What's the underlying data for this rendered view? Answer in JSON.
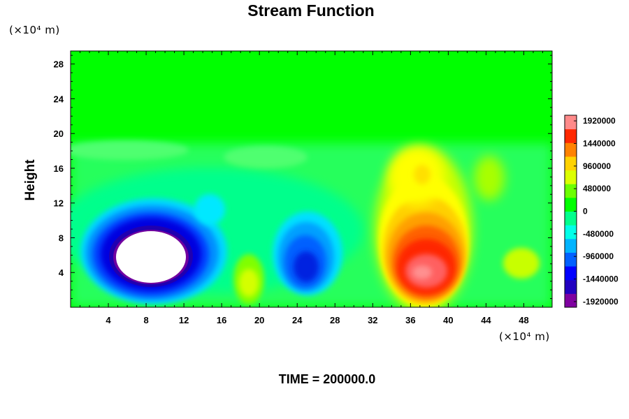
{
  "chart_data": {
    "type": "heatmap",
    "title": "Stream Function",
    "ylabel": "Height",
    "x_unit": "(×10⁴ m)",
    "y_unit": "(×10⁴ m)",
    "xlim": [
      0,
      51
    ],
    "ylim": [
      0,
      29.5
    ],
    "x_ticks": [
      4,
      8,
      12,
      16,
      20,
      24,
      28,
      32,
      36,
      40,
      44,
      48
    ],
    "y_ticks": [
      4,
      8,
      12,
      16,
      20,
      24,
      28
    ],
    "colorbar": {
      "range": [
        -2040000,
        2040000
      ],
      "tick_values": [
        1920000,
        1440000,
        960000,
        480000,
        0,
        -480000,
        -960000,
        -1440000,
        -1920000
      ],
      "tick_labels": [
        "1920000",
        "1440000",
        "960000",
        "480000",
        "0",
        "-480000",
        "-960000",
        "-1440000",
        "-1920000"
      ],
      "colors": [
        "#7f00a0",
        "#2200c0",
        "#0000ff",
        "#0060ff",
        "#00b4ff",
        "#00ffe8",
        "#00ff8c",
        "#00ff00",
        "#6cff00",
        "#dcff00",
        "#ffd200",
        "#ff8200",
        "#ff2800",
        "#ff8a8a"
      ]
    },
    "field_features": [
      {
        "name": "strong negative cell",
        "center": [
          8.8,
          6.0
        ],
        "extent": [
          5.0,
          3.3
        ],
        "peak": -2400000,
        "note": "values below colorbar minimum shown as white"
      },
      {
        "name": "negative cell",
        "center": [
          25.5,
          4.5
        ],
        "extent": [
          3.0,
          3.0
        ],
        "peak": -1500000
      },
      {
        "name": "weak positive cell",
        "center": [
          19.0,
          2.5
        ],
        "extent": [
          1.6,
          1.8
        ],
        "peak": 600000
      },
      {
        "name": "strong positive cell",
        "center": [
          38.0,
          4.5
        ],
        "extent": [
          4.0,
          3.6
        ],
        "peak": 2000000
      },
      {
        "name": "positive ridge",
        "center": [
          35.5,
          15.5
        ],
        "extent": [
          2.5,
          3.5
        ],
        "peak": 480000
      },
      {
        "name": "weak positive cell",
        "center": [
          48.3,
          5.3
        ],
        "extent": [
          1.5,
          1.0
        ],
        "peak": 400000
      }
    ],
    "footer": "TIME = 200000.0"
  }
}
